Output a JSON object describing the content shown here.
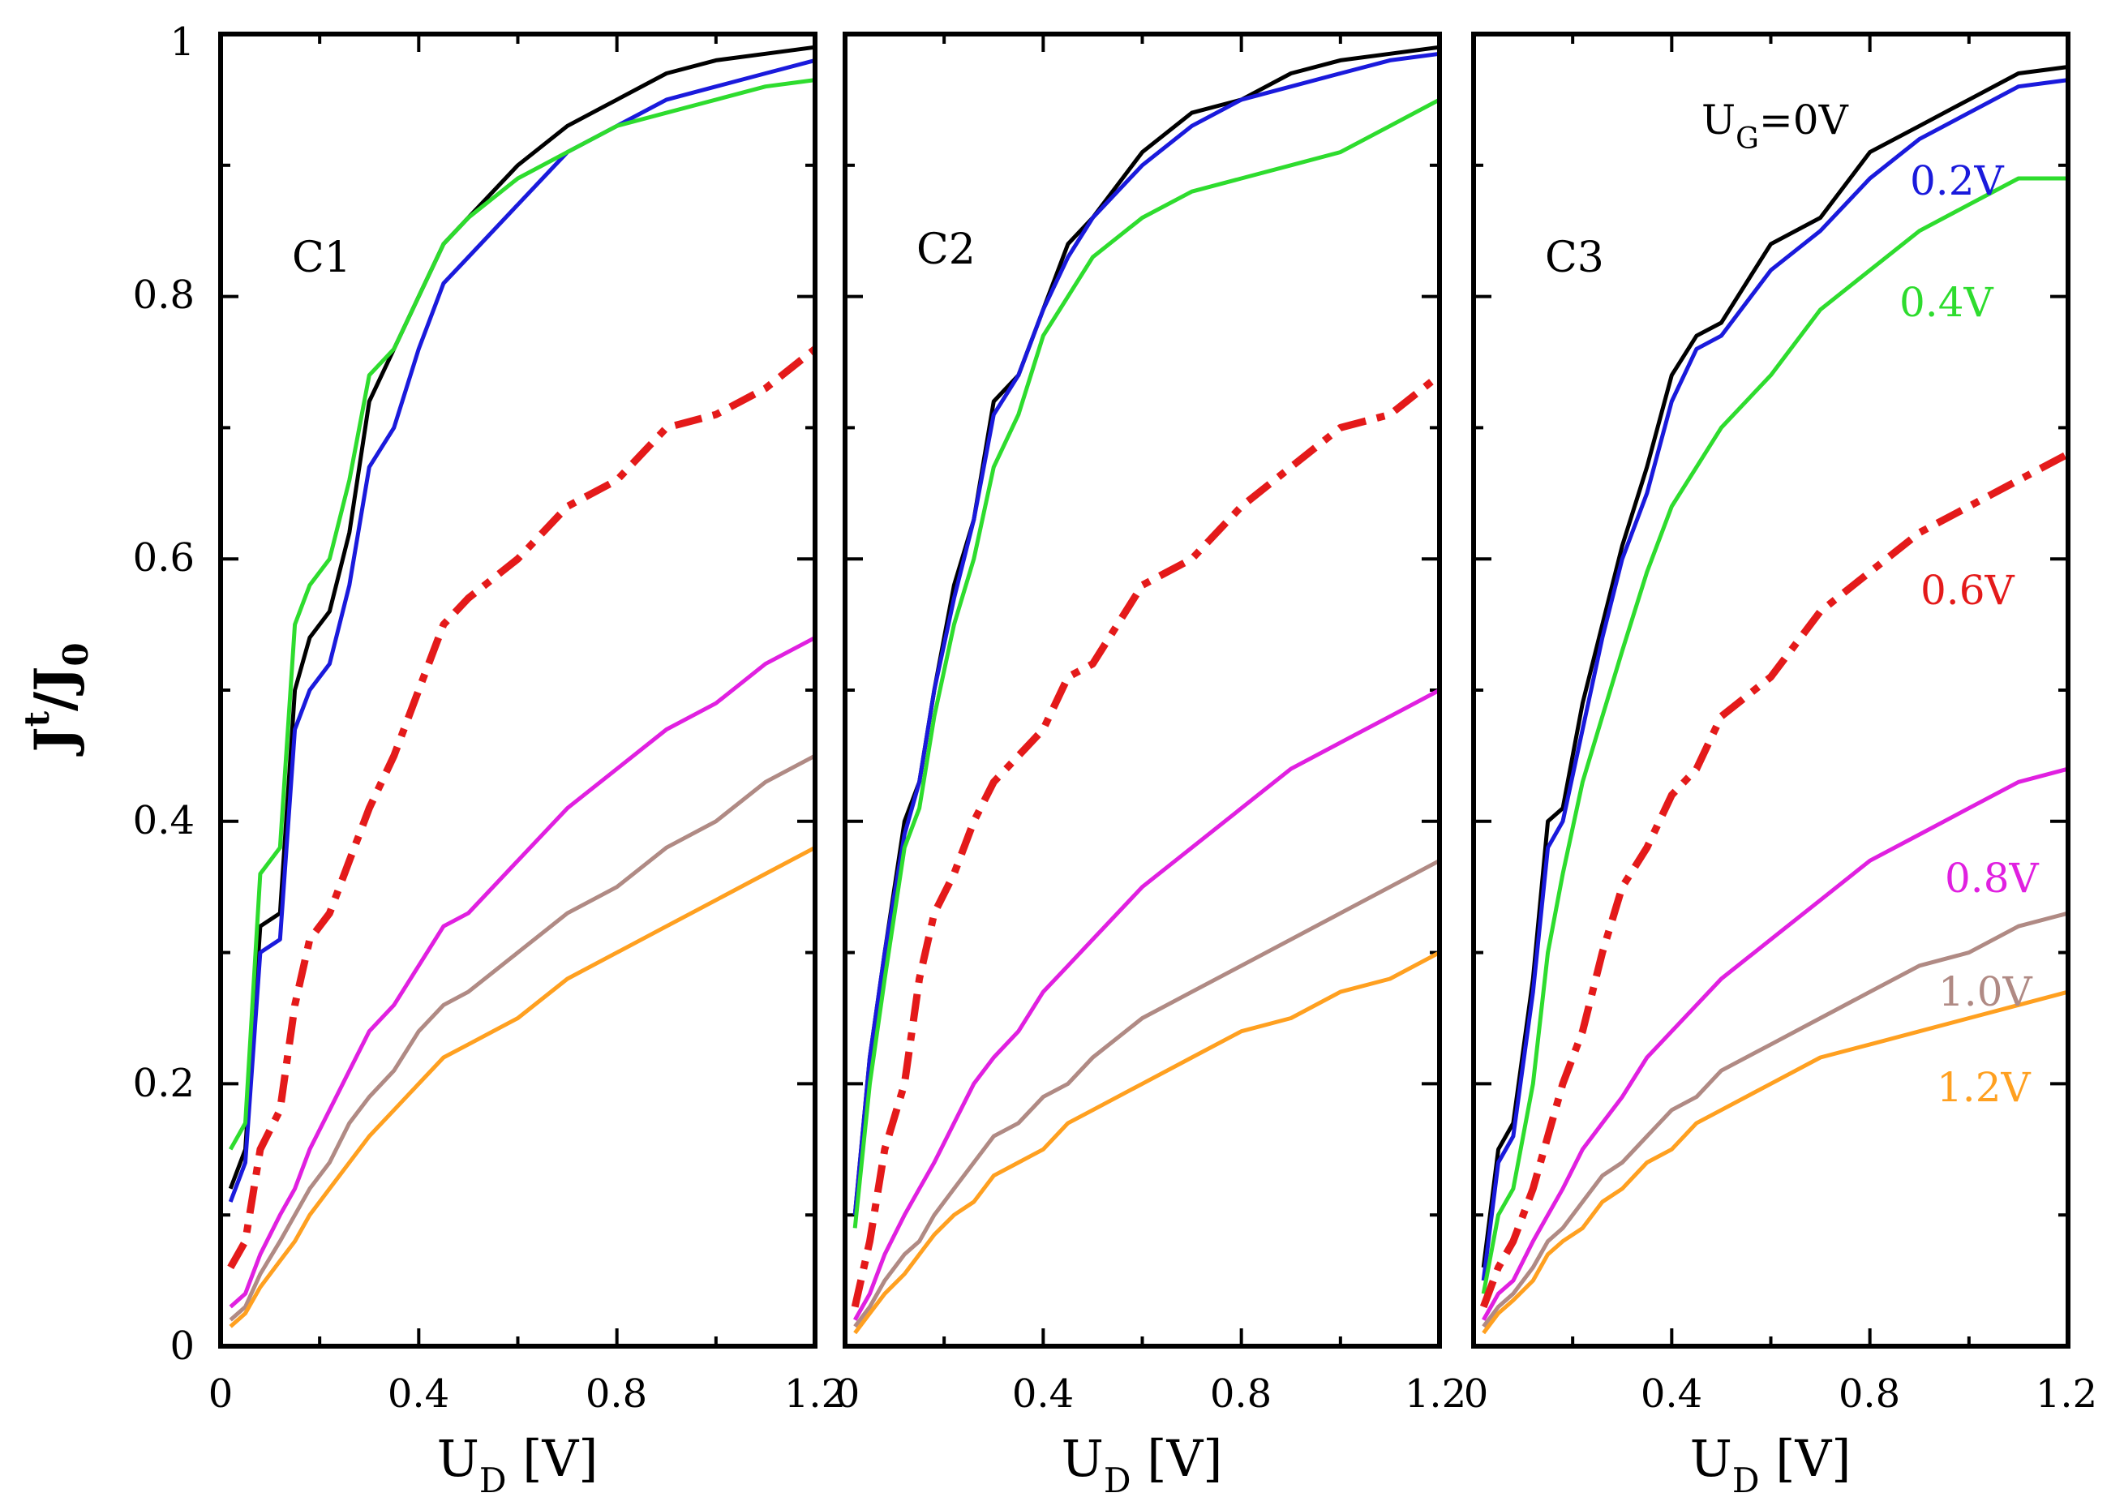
{
  "y_axis": {
    "label": "J",
    "label_sup": "t",
    "label_sep": "/",
    "label_main2": "J",
    "label_sub": "0"
  },
  "x_axis": {
    "label": "U",
    "label_sub": "D",
    "label_unit": " [V]"
  },
  "x_ticks": [
    "0",
    "0.4",
    "0.8",
    "1.2"
  ],
  "y_ticks": [
    "0",
    "0.2",
    "0.4",
    "0.6",
    "0.8",
    "1"
  ],
  "series_colors": {
    "0V": "#000000",
    "0.2V": "#1a1adc",
    "0.4V": "#2edc2e",
    "0.6V": "#e41a1a",
    "0.8V": "#e020e0",
    "1.0V": "#b08a84",
    "1.2V": "#ffa020"
  },
  "annotations": {
    "ug_prefix": "U",
    "ug_sub": "G",
    "ug_value": "=0V",
    "v02": "0.2V",
    "v04": "0.4V",
    "v06": "0.6V",
    "v08": "0.8V",
    "v10": "1.0V",
    "v12": "1.2V"
  },
  "chart_data": [
    {
      "type": "line",
      "title": "C1",
      "xlabel": "U_D [V]",
      "ylabel": "J^t/J_0",
      "xlim": [
        0,
        1.2
      ],
      "ylim": [
        0,
        1
      ],
      "x": [
        0.02,
        0.05,
        0.08,
        0.12,
        0.15,
        0.18,
        0.22,
        0.26,
        0.3,
        0.35,
        0.4,
        0.45,
        0.5,
        0.6,
        0.7,
        0.8,
        0.9,
        1.0,
        1.1,
        1.2
      ],
      "series": [
        {
          "name": "0V",
          "values": [
            0.12,
            0.15,
            0.32,
            0.33,
            0.5,
            0.54,
            0.56,
            0.62,
            0.72,
            0.76,
            0.8,
            0.84,
            0.86,
            0.9,
            0.93,
            0.95,
            0.97,
            0.98,
            0.985,
            0.99
          ]
        },
        {
          "name": "0.2V",
          "values": [
            0.11,
            0.14,
            0.3,
            0.31,
            0.47,
            0.5,
            0.52,
            0.58,
            0.67,
            0.7,
            0.76,
            0.81,
            0.83,
            0.87,
            0.91,
            0.93,
            0.95,
            0.96,
            0.97,
            0.98
          ]
        },
        {
          "name": "0.4V",
          "values": [
            0.15,
            0.17,
            0.36,
            0.38,
            0.55,
            0.58,
            0.6,
            0.66,
            0.74,
            0.76,
            0.8,
            0.84,
            0.86,
            0.89,
            0.91,
            0.93,
            0.94,
            0.95,
            0.96,
            0.965
          ]
        },
        {
          "name": "0.6V",
          "values": [
            0.06,
            0.08,
            0.15,
            0.18,
            0.26,
            0.31,
            0.33,
            0.37,
            0.41,
            0.45,
            0.5,
            0.55,
            0.57,
            0.6,
            0.64,
            0.66,
            0.7,
            0.71,
            0.73,
            0.76
          ]
        },
        {
          "name": "0.8V",
          "values": [
            0.03,
            0.04,
            0.07,
            0.1,
            0.12,
            0.15,
            0.18,
            0.21,
            0.24,
            0.26,
            0.29,
            0.32,
            0.33,
            0.37,
            0.41,
            0.44,
            0.47,
            0.49,
            0.52,
            0.54
          ]
        },
        {
          "name": "1.0V",
          "values": [
            0.02,
            0.03,
            0.055,
            0.08,
            0.1,
            0.12,
            0.14,
            0.17,
            0.19,
            0.21,
            0.24,
            0.26,
            0.27,
            0.3,
            0.33,
            0.35,
            0.38,
            0.4,
            0.43,
            0.45
          ]
        },
        {
          "name": "1.2V",
          "values": [
            0.015,
            0.025,
            0.045,
            0.065,
            0.08,
            0.1,
            0.12,
            0.14,
            0.16,
            0.18,
            0.2,
            0.22,
            0.23,
            0.25,
            0.28,
            0.3,
            0.32,
            0.34,
            0.36,
            0.38
          ]
        }
      ]
    },
    {
      "type": "line",
      "title": "C2",
      "xlabel": "U_D [V]",
      "ylabel": "J^t/J_0",
      "xlim": [
        0,
        1.2
      ],
      "ylim": [
        0,
        1
      ],
      "x": [
        0.02,
        0.05,
        0.08,
        0.12,
        0.15,
        0.18,
        0.22,
        0.26,
        0.3,
        0.35,
        0.4,
        0.45,
        0.5,
        0.6,
        0.7,
        0.8,
        0.9,
        1.0,
        1.1,
        1.2
      ],
      "series": [
        {
          "name": "0V",
          "values": [
            0.1,
            0.22,
            0.3,
            0.4,
            0.43,
            0.5,
            0.58,
            0.63,
            0.72,
            0.74,
            0.79,
            0.84,
            0.86,
            0.91,
            0.94,
            0.95,
            0.97,
            0.98,
            0.985,
            0.99
          ]
        },
        {
          "name": "0.2V",
          "values": [
            0.1,
            0.22,
            0.3,
            0.39,
            0.43,
            0.5,
            0.57,
            0.63,
            0.71,
            0.74,
            0.79,
            0.83,
            0.86,
            0.9,
            0.93,
            0.95,
            0.96,
            0.97,
            0.98,
            0.985
          ]
        },
        {
          "name": "0.4V",
          "values": [
            0.09,
            0.2,
            0.28,
            0.38,
            0.41,
            0.48,
            0.55,
            0.6,
            0.67,
            0.71,
            0.77,
            0.8,
            0.83,
            0.86,
            0.88,
            0.89,
            0.9,
            0.91,
            0.93,
            0.95
          ]
        },
        {
          "name": "0.6V",
          "values": [
            0.03,
            0.08,
            0.15,
            0.2,
            0.28,
            0.33,
            0.36,
            0.4,
            0.43,
            0.45,
            0.47,
            0.51,
            0.52,
            0.58,
            0.6,
            0.64,
            0.67,
            0.7,
            0.71,
            0.74
          ]
        },
        {
          "name": "0.8V",
          "values": [
            0.02,
            0.04,
            0.07,
            0.1,
            0.12,
            0.14,
            0.17,
            0.2,
            0.22,
            0.24,
            0.27,
            0.29,
            0.31,
            0.35,
            0.38,
            0.41,
            0.44,
            0.46,
            0.48,
            0.5
          ]
        },
        {
          "name": "1.0V",
          "values": [
            0.015,
            0.03,
            0.05,
            0.07,
            0.08,
            0.1,
            0.12,
            0.14,
            0.16,
            0.17,
            0.19,
            0.2,
            0.22,
            0.25,
            0.27,
            0.29,
            0.31,
            0.33,
            0.35,
            0.37
          ]
        },
        {
          "name": "1.2V",
          "values": [
            0.01,
            0.025,
            0.04,
            0.055,
            0.07,
            0.085,
            0.1,
            0.11,
            0.13,
            0.14,
            0.15,
            0.17,
            0.18,
            0.2,
            0.22,
            0.24,
            0.25,
            0.27,
            0.28,
            0.3
          ]
        }
      ]
    },
    {
      "type": "line",
      "title": "C3",
      "xlabel": "U_D [V]",
      "ylabel": "J^t/J_0",
      "xlim": [
        0,
        1.2
      ],
      "ylim": [
        0,
        1
      ],
      "x": [
        0.02,
        0.05,
        0.08,
        0.12,
        0.15,
        0.18,
        0.22,
        0.26,
        0.3,
        0.35,
        0.4,
        0.45,
        0.5,
        0.6,
        0.7,
        0.8,
        0.9,
        1.0,
        1.1,
        1.2
      ],
      "series": [
        {
          "name": "0V",
          "values": [
            0.06,
            0.15,
            0.17,
            0.28,
            0.4,
            0.41,
            0.49,
            0.55,
            0.61,
            0.67,
            0.74,
            0.77,
            0.78,
            0.84,
            0.86,
            0.91,
            0.93,
            0.95,
            0.97,
            0.975
          ]
        },
        {
          "name": "0.2V",
          "values": [
            0.05,
            0.14,
            0.16,
            0.27,
            0.38,
            0.4,
            0.47,
            0.54,
            0.6,
            0.65,
            0.72,
            0.76,
            0.77,
            0.82,
            0.85,
            0.89,
            0.92,
            0.94,
            0.96,
            0.965
          ]
        },
        {
          "name": "0.4V",
          "values": [
            0.04,
            0.1,
            0.12,
            0.2,
            0.3,
            0.36,
            0.43,
            0.48,
            0.53,
            0.59,
            0.64,
            0.67,
            0.7,
            0.74,
            0.79,
            0.82,
            0.85,
            0.87,
            0.89,
            0.89
          ]
        },
        {
          "name": "0.6V",
          "values": [
            0.03,
            0.06,
            0.08,
            0.12,
            0.16,
            0.2,
            0.24,
            0.3,
            0.35,
            0.38,
            0.42,
            0.44,
            0.48,
            0.51,
            0.56,
            0.59,
            0.62,
            0.64,
            0.66,
            0.68
          ]
        },
        {
          "name": "0.8V",
          "values": [
            0.02,
            0.04,
            0.05,
            0.08,
            0.1,
            0.12,
            0.15,
            0.17,
            0.19,
            0.22,
            0.24,
            0.26,
            0.28,
            0.31,
            0.34,
            0.37,
            0.39,
            0.41,
            0.43,
            0.44
          ]
        },
        {
          "name": "1.0V",
          "values": [
            0.015,
            0.03,
            0.04,
            0.06,
            0.08,
            0.09,
            0.11,
            0.13,
            0.14,
            0.16,
            0.18,
            0.19,
            0.21,
            0.23,
            0.25,
            0.27,
            0.29,
            0.3,
            0.32,
            0.33
          ]
        },
        {
          "name": "1.2V",
          "values": [
            0.01,
            0.025,
            0.035,
            0.05,
            0.07,
            0.08,
            0.09,
            0.11,
            0.12,
            0.14,
            0.15,
            0.17,
            0.18,
            0.2,
            0.22,
            0.23,
            0.24,
            0.25,
            0.26,
            0.27
          ]
        }
      ]
    }
  ]
}
